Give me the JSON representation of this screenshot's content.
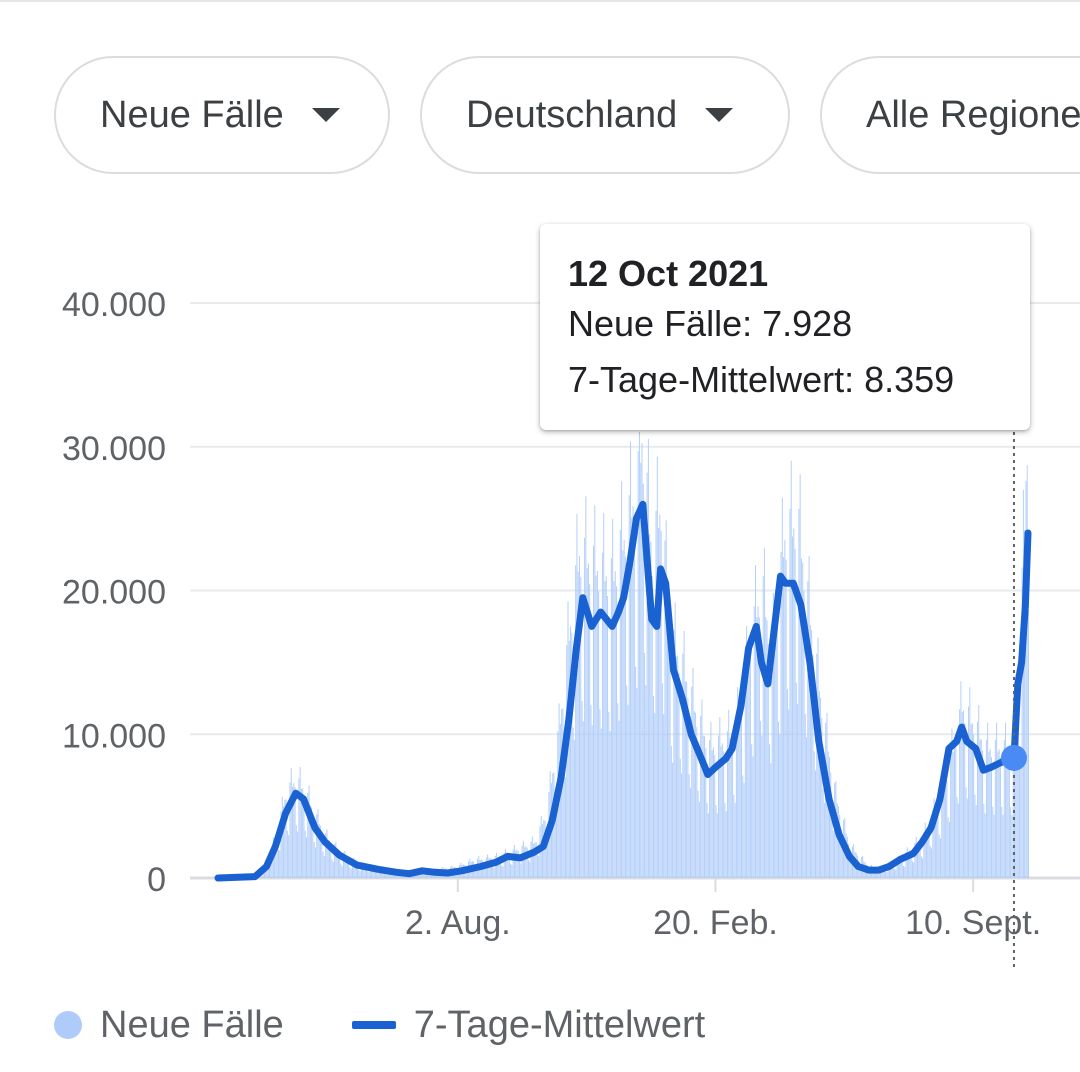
{
  "filters": [
    {
      "label": "Neue Fälle"
    },
    {
      "label": "Deutschland"
    },
    {
      "label": "Alle Regionen"
    }
  ],
  "tooltip": {
    "date": "12 Oct 2021",
    "cases_label": "Neue Fälle",
    "cases_value": "7.928",
    "avg_label": "7-Tage-Mittelwert",
    "avg_value": "8.359"
  },
  "legend": {
    "cases": "Neue Fälle",
    "average": "7-Tage-Mittelwert"
  },
  "colors": {
    "bars": "#aecbfa",
    "line": "#1a62d2",
    "highlight_point": "#4a8af4",
    "grid": "#e8eaed"
  },
  "chart_data": {
    "type": "bar",
    "title": "",
    "xlabel": "",
    "ylabel": "",
    "ylim": [
      0,
      40000
    ],
    "yticks": [
      0,
      10000,
      20000,
      30000,
      40000
    ],
    "ytick_labels": [
      "0",
      "10.000",
      "20.000",
      "30.000",
      "40.000"
    ],
    "x_range": [
      "2020-01-27",
      "2021-10-23"
    ],
    "xticks": [
      "2020-08-02",
      "2021-02-20",
      "2021-09-10"
    ],
    "xtick_labels": [
      "2. Aug.",
      "20. Feb.",
      "10. Sept."
    ],
    "grid": true,
    "legend_position": "bottom-left",
    "highlight": {
      "date": "2021-10-12",
      "cases": 7928,
      "average": 8359
    },
    "series": [
      {
        "name": "Neue Fälle",
        "type": "bar",
        "points": [
          [
            "2020-01-27",
            0
          ],
          [
            "2020-03-01",
            300
          ],
          [
            "2020-03-12",
            2500
          ],
          [
            "2020-03-20",
            5200
          ],
          [
            "2020-03-27",
            6000
          ],
          [
            "2020-04-03",
            5500
          ],
          [
            "2020-04-10",
            4200
          ],
          [
            "2020-04-20",
            2600
          ],
          [
            "2020-05-01",
            1600
          ],
          [
            "2020-05-15",
            900
          ],
          [
            "2020-06-01",
            600
          ],
          [
            "2020-06-15",
            450
          ],
          [
            "2020-07-01",
            400
          ],
          [
            "2020-07-15",
            500
          ],
          [
            "2020-08-01",
            700
          ],
          [
            "2020-08-15",
            1100
          ],
          [
            "2020-09-01",
            1300
          ],
          [
            "2020-09-15",
            1700
          ],
          [
            "2020-10-01",
            2200
          ],
          [
            "2020-10-10",
            4000
          ],
          [
            "2020-10-20",
            9000
          ],
          [
            "2020-10-28",
            15000
          ],
          [
            "2020-11-05",
            20000
          ],
          [
            "2020-11-20",
            19000
          ],
          [
            "2020-12-01",
            18500
          ],
          [
            "2020-12-10",
            21000
          ],
          [
            "2020-12-20",
            24000
          ],
          [
            "2020-12-24",
            27000
          ],
          [
            "2021-01-01",
            20000
          ],
          [
            "2021-01-08",
            23000
          ],
          [
            "2021-01-15",
            15000
          ],
          [
            "2021-01-25",
            13000
          ],
          [
            "2021-02-05",
            10000
          ],
          [
            "2021-02-15",
            8000
          ],
          [
            "2021-03-01",
            8500
          ],
          [
            "2021-03-10",
            10000
          ],
          [
            "2021-03-20",
            15000
          ],
          [
            "2021-03-28",
            18000
          ],
          [
            "2021-04-05",
            14000
          ],
          [
            "2021-04-15",
            21000
          ],
          [
            "2021-04-25",
            22000
          ],
          [
            "2021-05-05",
            16000
          ],
          [
            "2021-05-15",
            10000
          ],
          [
            "2021-05-25",
            5000
          ],
          [
            "2021-06-05",
            2000
          ],
          [
            "2021-06-20",
            700
          ],
          [
            "2021-07-01",
            600
          ],
          [
            "2021-07-15",
            1200
          ],
          [
            "2021-08-01",
            2500
          ],
          [
            "2021-08-15",
            5000
          ],
          [
            "2021-08-25",
            8000
          ],
          [
            "2021-09-01",
            10500
          ],
          [
            "2021-09-10",
            9500
          ],
          [
            "2021-09-20",
            8000
          ],
          [
            "2021-10-01",
            8000
          ],
          [
            "2021-10-05",
            8000
          ],
          [
            "2021-10-12",
            7928
          ],
          [
            "2021-10-17",
            16000
          ],
          [
            "2021-10-20",
            22000
          ],
          [
            "2021-10-23",
            30000
          ]
        ]
      },
      {
        "name": "7-Tage-Mittelwert",
        "type": "line",
        "points": [
          [
            "2020-01-27",
            0
          ],
          [
            "2020-02-25",
            100
          ],
          [
            "2020-03-05",
            800
          ],
          [
            "2020-03-12",
            2200
          ],
          [
            "2020-03-20",
            4500
          ],
          [
            "2020-03-28",
            5900
          ],
          [
            "2020-04-03",
            5500
          ],
          [
            "2020-04-12",
            3500
          ],
          [
            "2020-04-20",
            2500
          ],
          [
            "2020-05-01",
            1600
          ],
          [
            "2020-05-15",
            900
          ],
          [
            "2020-06-01",
            600
          ],
          [
            "2020-06-15",
            400
          ],
          [
            "2020-06-25",
            300
          ],
          [
            "2020-07-05",
            500
          ],
          [
            "2020-07-15",
            400
          ],
          [
            "2020-07-25",
            350
          ],
          [
            "2020-08-05",
            500
          ],
          [
            "2020-08-20",
            800
          ],
          [
            "2020-09-01",
            1100
          ],
          [
            "2020-09-10",
            1500
          ],
          [
            "2020-09-20",
            1400
          ],
          [
            "2020-10-01",
            1800
          ],
          [
            "2020-10-08",
            2200
          ],
          [
            "2020-10-15",
            4000
          ],
          [
            "2020-10-22",
            7000
          ],
          [
            "2020-10-28",
            11000
          ],
          [
            "2020-11-03",
            16000
          ],
          [
            "2020-11-08",
            19500
          ],
          [
            "2020-11-15",
            17500
          ],
          [
            "2020-11-22",
            18500
          ],
          [
            "2020-12-01",
            17500
          ],
          [
            "2020-12-06",
            18500
          ],
          [
            "2020-12-10",
            19500
          ],
          [
            "2020-12-15",
            22000
          ],
          [
            "2020-12-20",
            25000
          ],
          [
            "2020-12-25",
            26000
          ],
          [
            "2021-01-01",
            18000
          ],
          [
            "2021-01-05",
            17500
          ],
          [
            "2021-01-08",
            21500
          ],
          [
            "2021-01-12",
            20500
          ],
          [
            "2021-01-18",
            14500
          ],
          [
            "2021-01-25",
            12500
          ],
          [
            "2021-02-01",
            10000
          ],
          [
            "2021-02-08",
            8500
          ],
          [
            "2021-02-14",
            7200
          ],
          [
            "2021-02-20",
            7700
          ],
          [
            "2021-02-28",
            8300
          ],
          [
            "2021-03-05",
            9000
          ],
          [
            "2021-03-12",
            12000
          ],
          [
            "2021-03-18",
            16000
          ],
          [
            "2021-03-24",
            17500
          ],
          [
            "2021-03-28",
            15000
          ],
          [
            "2021-04-02",
            13500
          ],
          [
            "2021-04-08",
            18000
          ],
          [
            "2021-04-12",
            21000
          ],
          [
            "2021-04-16",
            20500
          ],
          [
            "2021-04-22",
            20500
          ],
          [
            "2021-04-28",
            19000
          ],
          [
            "2021-05-05",
            15000
          ],
          [
            "2021-05-12",
            9500
          ],
          [
            "2021-05-20",
            5500
          ],
          [
            "2021-05-28",
            3000
          ],
          [
            "2021-06-05",
            1500
          ],
          [
            "2021-06-12",
            800
          ],
          [
            "2021-06-20",
            550
          ],
          [
            "2021-06-28",
            550
          ],
          [
            "2021-07-06",
            800
          ],
          [
            "2021-07-15",
            1300
          ],
          [
            "2021-07-25",
            1700
          ],
          [
            "2021-08-01",
            2500
          ],
          [
            "2021-08-08",
            3500
          ],
          [
            "2021-08-15",
            5500
          ],
          [
            "2021-08-22",
            9000
          ],
          [
            "2021-08-28",
            9500
          ],
          [
            "2021-09-01",
            10500
          ],
          [
            "2021-09-05",
            9500
          ],
          [
            "2021-09-12",
            9000
          ],
          [
            "2021-09-18",
            7500
          ],
          [
            "2021-09-24",
            7700
          ],
          [
            "2021-10-01",
            8000
          ],
          [
            "2021-10-06",
            8200
          ],
          [
            "2021-10-12",
            8359
          ],
          [
            "2021-10-15",
            13500
          ],
          [
            "2021-10-18",
            15000
          ],
          [
            "2021-10-21",
            19000
          ],
          [
            "2021-10-23",
            24000
          ]
        ]
      }
    ]
  }
}
